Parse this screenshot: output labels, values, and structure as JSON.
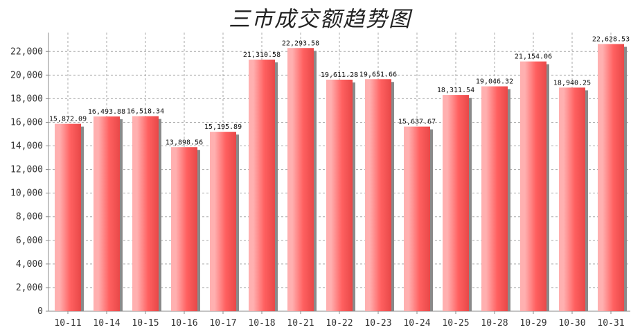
{
  "chart_data": {
    "type": "bar",
    "title": "三市成交额趋势图",
    "xlabel": "",
    "ylabel": "",
    "categories": [
      "10-11",
      "10-14",
      "10-15",
      "10-16",
      "10-17",
      "10-18",
      "10-21",
      "10-22",
      "10-23",
      "10-24",
      "10-25",
      "10-28",
      "10-29",
      "10-30",
      "10-31"
    ],
    "values": [
      15872.09,
      16493.88,
      16518.34,
      13898.56,
      15195.89,
      21310.58,
      22293.58,
      19611.28,
      19651.66,
      15637.67,
      18311.54,
      19046.32,
      21154.06,
      18940.25,
      22628.53
    ],
    "value_labels": [
      "15,872.09",
      "16,493.88",
      "16,518.34",
      "13,898.56",
      "15,195.89",
      "21,310.58",
      "22,293.58",
      "19,611.28",
      "19,651.66",
      "15,637.67",
      "18,311.54",
      "19,046.32",
      "21,154.06",
      "18,940.25",
      "22,628.53"
    ],
    "yticks": [
      0,
      2000,
      4000,
      6000,
      8000,
      10000,
      12000,
      14000,
      16000,
      18000,
      20000,
      22000
    ],
    "ytick_labels": [
      "0",
      "2,000",
      "4,000",
      "6,000",
      "8,000",
      "10,000",
      "12,000",
      "14,000",
      "16,000",
      "18,000",
      "20,000",
      "22,000"
    ],
    "ylim": [
      0,
      23600
    ],
    "grid": true,
    "legend": "none",
    "colors": {
      "bar_light": "#ffb0b0",
      "bar_main": "#ff6060",
      "bar_dark": "#e84848",
      "shadow": "#8a8a8a",
      "grid": "#a8a8a8",
      "axis": "#888888"
    }
  }
}
